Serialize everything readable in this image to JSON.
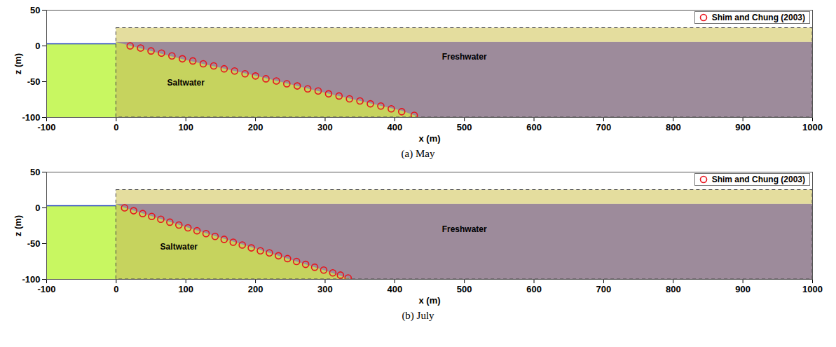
{
  "chart_data": [
    {
      "type": "scatter",
      "title": "(a) May",
      "x_label": "x (m)",
      "y_label": "z (m)",
      "xlim": [
        -100,
        1000
      ],
      "ylim": [
        -100,
        50
      ],
      "xticks": [
        -100,
        0,
        100,
        200,
        300,
        400,
        500,
        600,
        700,
        800,
        900,
        1000
      ],
      "yticks": [
        -100,
        -50,
        0,
        50
      ],
      "legend": "upper right",
      "series": [
        {
          "name": "Shim and Chung (2003)",
          "color": "#e8141c",
          "marker": "circle",
          "x": [
            20,
            35,
            50,
            65,
            80,
            95,
            110,
            125,
            140,
            155,
            170,
            185,
            200,
            215,
            230,
            245,
            260,
            275,
            290,
            305,
            320,
            335,
            350,
            365,
            380,
            395,
            410,
            428
          ],
          "y": [
            0,
            -3,
            -7,
            -10,
            -14,
            -18,
            -21,
            -25,
            -28,
            -32,
            -35,
            -39,
            -42,
            -46,
            -49,
            -53,
            -56,
            -60,
            -63,
            -67,
            -70,
            -74,
            -77,
            -81,
            -84,
            -88,
            -92,
            -97
          ]
        }
      ],
      "annotations": [
        {
          "text": "Freshwater",
          "x": 500,
          "y": -15
        },
        {
          "text": "Saltwater",
          "x": 100,
          "y": -52
        }
      ],
      "regions": {
        "sea_level": 3,
        "water_table": 5,
        "domain_top": 25,
        "domain_x": [
          0,
          1000
        ],
        "saltwater_interface": {
          "x": [
            0,
            20,
            100,
            200,
            300,
            380,
            410,
            436
          ],
          "z": [
            5,
            0,
            -20,
            -42,
            -66,
            -84,
            -91,
            -100
          ]
        }
      }
    },
    {
      "type": "scatter",
      "title": "(b) July",
      "x_label": "x (m)",
      "y_label": "z (m)",
      "xlim": [
        -100,
        1000
      ],
      "ylim": [
        -100,
        50
      ],
      "xticks": [
        -100,
        0,
        100,
        200,
        300,
        400,
        500,
        600,
        700,
        800,
        900,
        1000
      ],
      "yticks": [
        -100,
        -50,
        0,
        50
      ],
      "legend": "upper right",
      "series": [
        {
          "name": "Shim and Chung (2003)",
          "color": "#e8141c",
          "marker": "circle",
          "x": [
            12,
            25,
            38,
            51,
            64,
            77,
            90,
            103,
            116,
            129,
            142,
            155,
            168,
            181,
            194,
            207,
            220,
            233,
            246,
            259,
            272,
            285,
            298,
            311,
            322,
            333
          ],
          "y": [
            0,
            -4,
            -8,
            -12,
            -16,
            -20,
            -24,
            -28,
            -32,
            -36,
            -40,
            -44,
            -48,
            -52,
            -56,
            -60,
            -63,
            -67,
            -71,
            -75,
            -79,
            -83,
            -87,
            -91,
            -94,
            -98
          ]
        }
      ],
      "annotations": [
        {
          "text": "Freshwater",
          "x": 500,
          "y": -30
        },
        {
          "text": "Saltwater",
          "x": 90,
          "y": -55
        }
      ],
      "regions": {
        "sea_level": 3,
        "water_table": 5,
        "domain_top": 25,
        "domain_x": [
          0,
          1000
        ],
        "saltwater_interface": {
          "x": [
            0,
            12,
            100,
            200,
            300,
            336
          ],
          "z": [
            5,
            0,
            -27,
            -57,
            -88,
            -100
          ]
        }
      }
    }
  ]
}
